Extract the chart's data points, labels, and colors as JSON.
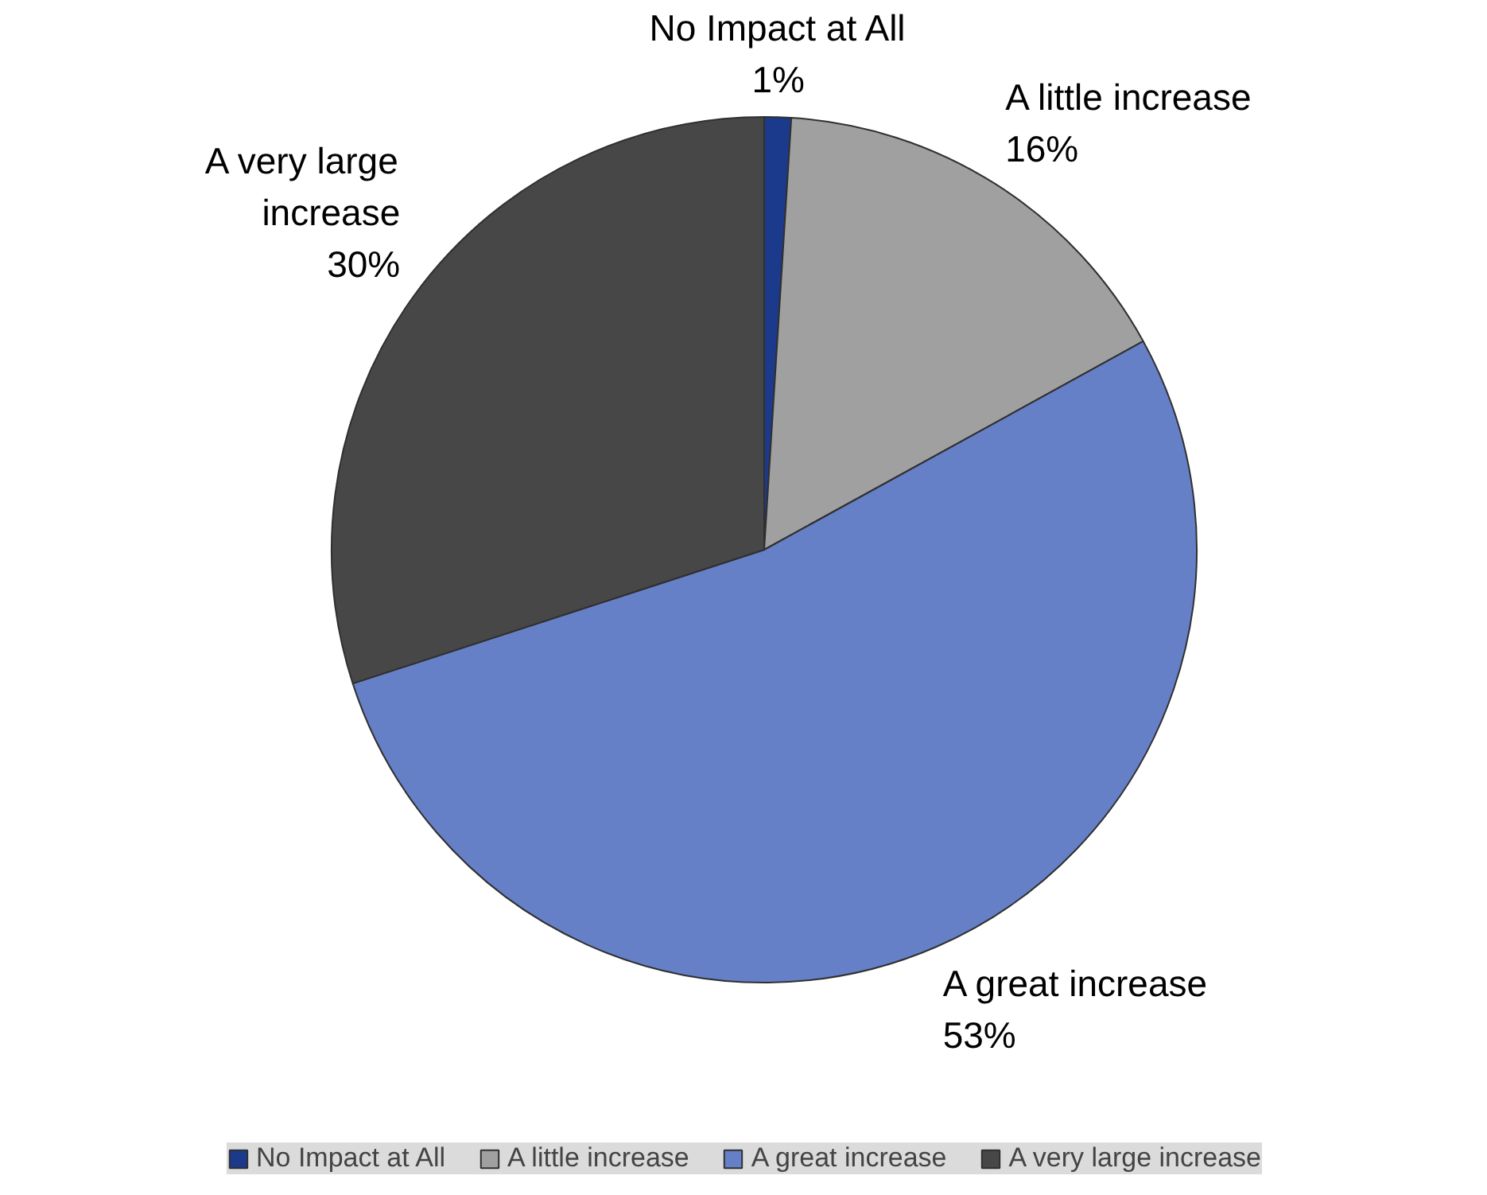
{
  "chart_data": {
    "type": "pie",
    "categories": [
      "No Impact at All",
      "A little increase",
      "A great increase",
      "A very large increase"
    ],
    "values": [
      1,
      16,
      53,
      30
    ],
    "colors": [
      "#1c3a8c",
      "#a0a0a0",
      "#6680c8",
      "#474747"
    ],
    "value_labels": [
      "1%",
      "16%",
      "53%",
      "30%"
    ],
    "legend": "bottom"
  }
}
